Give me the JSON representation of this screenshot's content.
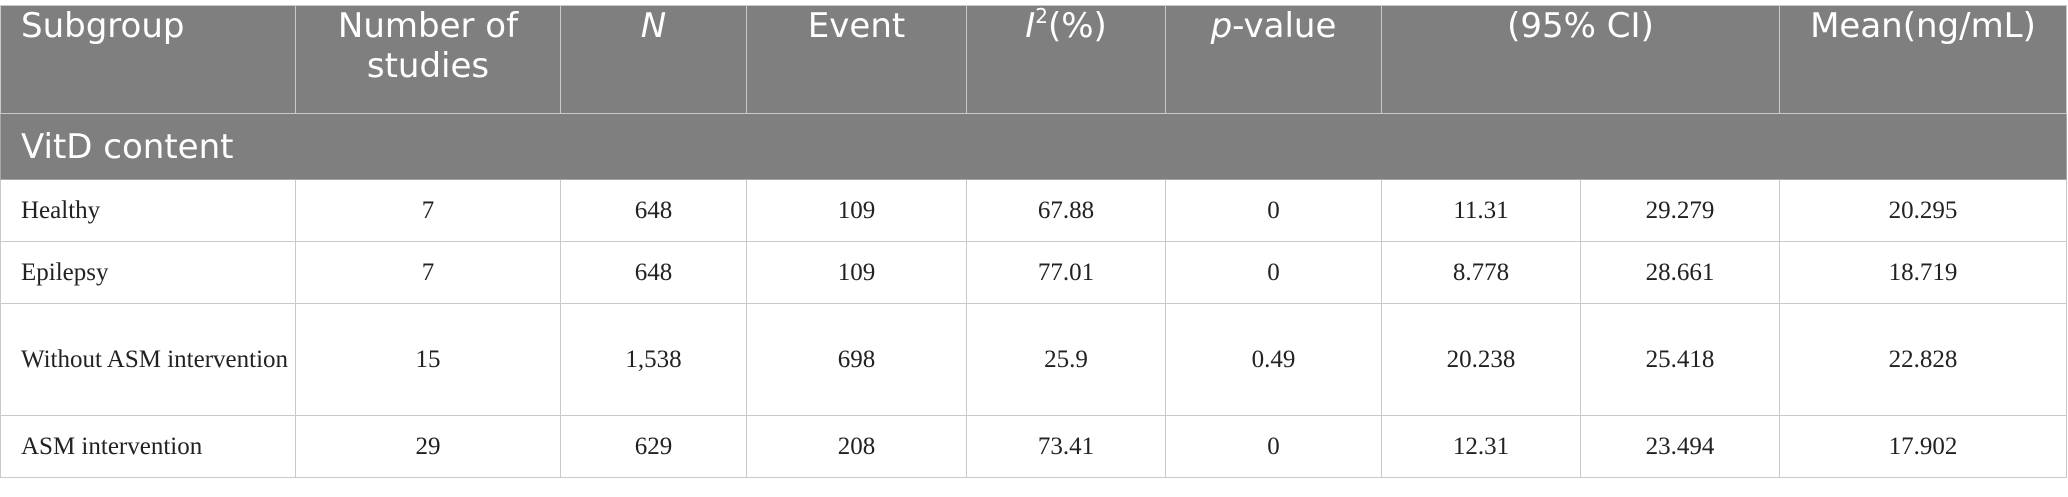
{
  "table": {
    "headers": {
      "subgroup": "Subgroup",
      "studies": "Number of studies",
      "n": "N",
      "event": "Event",
      "i2_base": "I",
      "i2_sup": "2",
      "i2_rest": "(%)",
      "p_italic": "p",
      "p_rest": "-value",
      "ci": "(95% CI)",
      "mean": "Mean(ng/mL)"
    },
    "section_label": "VitD content",
    "rows": [
      {
        "subgroup": "Healthy",
        "studies": "7",
        "n": "648",
        "event": "109",
        "i2": "67.88",
        "p": "0",
        "ci_low": "11.31",
        "ci_high": "29.279",
        "mean": "20.295"
      },
      {
        "subgroup": "Epilepsy",
        "studies": "7",
        "n": "648",
        "event": "109",
        "i2": "77.01",
        "p": "0",
        "ci_low": "8.778",
        "ci_high": "28.661",
        "mean": "18.719"
      },
      {
        "subgroup": "Without ASM intervention",
        "studies": "15",
        "n": "1,538",
        "event": "698",
        "i2": "25.9",
        "p": "0.49",
        "ci_low": "20.238",
        "ci_high": "25.418",
        "mean": "22.828"
      },
      {
        "subgroup": "ASM intervention",
        "studies": "29",
        "n": "629",
        "event": "208",
        "i2": "73.41",
        "p": "0",
        "ci_low": "12.31",
        "ci_high": "23.494",
        "mean": "17.902"
      }
    ]
  }
}
